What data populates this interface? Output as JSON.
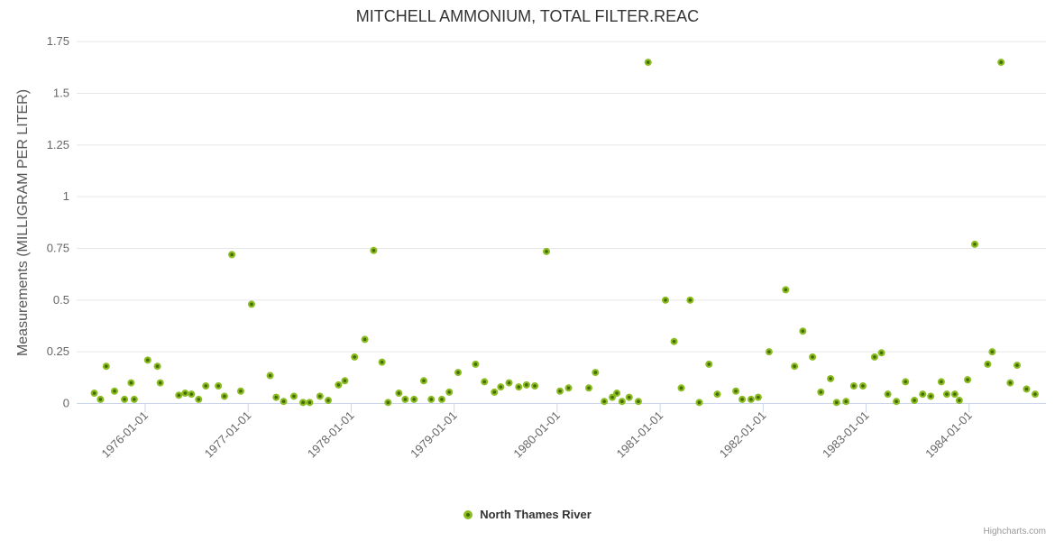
{
  "chart": {
    "title": "MITCHELL AMMONIUM, TOTAL FILTER.REAC",
    "y_axis_title": "Measurements (MILLIGRAM PER LITER)",
    "credit": "Highcharts.com",
    "legend": {
      "series_label": "North Thames River",
      "marker_color": "#8bbc21"
    }
  },
  "colors": {
    "background": "#ffffff",
    "grid": "#e6e6e6",
    "axis_line": "#ccd6eb",
    "text_primary": "#333333",
    "text_secondary": "#666666",
    "credit_text": "#999999",
    "marker_outer": "#8bbc21",
    "marker_inner": "#456b06"
  },
  "chart_data": {
    "type": "scatter",
    "title": "MITCHELL AMMONIUM, TOTAL FILTER.REAC",
    "xlabel": "",
    "ylabel": "Measurements (MILLIGRAM PER LITER)",
    "ylim": [
      0,
      1.75
    ],
    "y_ticks": [
      0,
      0.25,
      0.5,
      0.75,
      1,
      1.25,
      1.5,
      1.75
    ],
    "x_tick_labels": [
      "1976-01-01",
      "1977-01-01",
      "1978-01-01",
      "1979-01-01",
      "1980-01-01",
      "1981-01-01",
      "1982-01-01",
      "1983-01-01",
      "1984-01-01"
    ],
    "grid": true,
    "legend_position": "bottom",
    "series": [
      {
        "name": "North Thames River",
        "color": "#8bbc21",
        "points": [
          [
            "1975-07-03",
            0.05
          ],
          [
            "1975-07-25",
            0.02
          ],
          [
            "1975-08-15",
            0.18
          ],
          [
            "1975-09-14",
            0.06
          ],
          [
            "1975-10-19",
            0.02
          ],
          [
            "1975-11-12",
            0.1
          ],
          [
            "1975-11-23",
            0.02
          ],
          [
            "1976-01-10",
            0.21
          ],
          [
            "1976-02-14",
            0.18
          ],
          [
            "1976-02-24",
            0.1
          ],
          [
            "1976-04-29",
            0.04
          ],
          [
            "1976-05-21",
            0.05
          ],
          [
            "1976-06-13",
            0.045
          ],
          [
            "1976-07-08",
            0.02
          ],
          [
            "1976-08-03",
            0.085
          ],
          [
            "1976-09-17",
            0.085
          ],
          [
            "1976-10-08",
            0.035
          ],
          [
            "1976-11-04",
            0.72
          ],
          [
            "1976-12-05",
            0.06
          ],
          [
            "1977-01-13",
            0.48
          ],
          [
            "1977-03-18",
            0.135
          ],
          [
            "1977-04-09",
            0.03
          ],
          [
            "1977-05-05",
            0.01
          ],
          [
            "1977-06-11",
            0.035
          ],
          [
            "1977-07-13",
            0.005
          ],
          [
            "1977-08-06",
            0.005
          ],
          [
            "1977-09-12",
            0.035
          ],
          [
            "1977-10-11",
            0.015
          ],
          [
            "1977-11-17",
            0.09
          ],
          [
            "1977-12-09",
            0.11
          ],
          [
            "1978-01-13",
            0.225
          ],
          [
            "1978-02-19",
            0.31
          ],
          [
            "1978-03-20",
            0.74
          ],
          [
            "1978-04-19",
            0.2
          ],
          [
            "1978-05-10",
            0.005
          ],
          [
            "1978-06-18",
            0.05
          ],
          [
            "1978-07-10",
            0.02
          ],
          [
            "1978-08-11",
            0.02
          ],
          [
            "1978-09-15",
            0.11
          ],
          [
            "1978-10-11",
            0.02
          ],
          [
            "1978-11-18",
            0.02
          ],
          [
            "1978-12-14",
            0.055
          ],
          [
            "1979-01-15",
            0.15
          ],
          [
            "1979-03-16",
            0.19
          ],
          [
            "1979-04-17",
            0.105
          ],
          [
            "1979-05-22",
            0.055
          ],
          [
            "1979-06-14",
            0.08
          ],
          [
            "1979-07-13",
            0.1
          ],
          [
            "1979-08-17",
            0.08
          ],
          [
            "1979-09-14",
            0.09
          ],
          [
            "1979-10-13",
            0.085
          ],
          [
            "1979-11-24",
            0.735
          ],
          [
            "1980-01-11",
            0.06
          ],
          [
            "1980-02-11",
            0.075
          ],
          [
            "1980-04-22",
            0.075
          ],
          [
            "1980-05-15",
            0.15
          ],
          [
            "1980-06-16",
            0.01
          ],
          [
            "1980-07-14",
            0.03
          ],
          [
            "1980-07-30",
            0.05
          ],
          [
            "1980-08-18",
            0.01
          ],
          [
            "1980-09-13",
            0.03
          ],
          [
            "1980-10-15",
            0.01
          ],
          [
            "1980-11-19",
            1.65
          ],
          [
            "1981-01-20",
            0.5
          ],
          [
            "1981-02-20",
            0.3
          ],
          [
            "1981-03-15",
            0.075
          ],
          [
            "1981-04-16",
            0.5
          ],
          [
            "1981-05-18",
            0.005
          ],
          [
            "1981-06-22",
            0.19
          ],
          [
            "1981-07-21",
            0.045
          ],
          [
            "1981-09-26",
            0.06
          ],
          [
            "1981-10-18",
            0.02
          ],
          [
            "1981-11-19",
            0.02
          ],
          [
            "1981-12-14",
            0.03
          ],
          [
            "1982-01-22",
            0.25
          ],
          [
            "1982-03-20",
            0.55
          ],
          [
            "1982-04-21",
            0.18
          ],
          [
            "1982-05-20",
            0.35
          ],
          [
            "1982-06-24",
            0.225
          ],
          [
            "1982-07-23",
            0.055
          ],
          [
            "1982-08-27",
            0.12
          ],
          [
            "1982-09-18",
            0.005
          ],
          [
            "1982-10-21",
            0.01
          ],
          [
            "1982-11-18",
            0.085
          ],
          [
            "1982-12-20",
            0.085
          ],
          [
            "1983-01-31",
            0.225
          ],
          [
            "1983-02-25",
            0.245
          ],
          [
            "1983-03-17",
            0.045
          ],
          [
            "1983-04-17",
            0.01
          ],
          [
            "1983-05-19",
            0.105
          ],
          [
            "1983-06-20",
            0.015
          ],
          [
            "1983-07-19",
            0.045
          ],
          [
            "1983-08-17",
            0.035
          ],
          [
            "1983-09-24",
            0.105
          ],
          [
            "1983-10-13",
            0.045
          ],
          [
            "1983-11-11",
            0.045
          ],
          [
            "1983-11-27",
            0.015
          ],
          [
            "1983-12-26",
            0.115
          ],
          [
            "1984-01-21",
            0.77
          ],
          [
            "1984-03-06",
            0.19
          ],
          [
            "1984-03-22",
            0.25
          ],
          [
            "1984-04-23",
            1.65
          ],
          [
            "1984-05-25",
            0.1
          ],
          [
            "1984-06-19",
            0.185
          ],
          [
            "1984-07-22",
            0.07
          ],
          [
            "1984-08-22",
            0.045
          ]
        ]
      }
    ]
  }
}
